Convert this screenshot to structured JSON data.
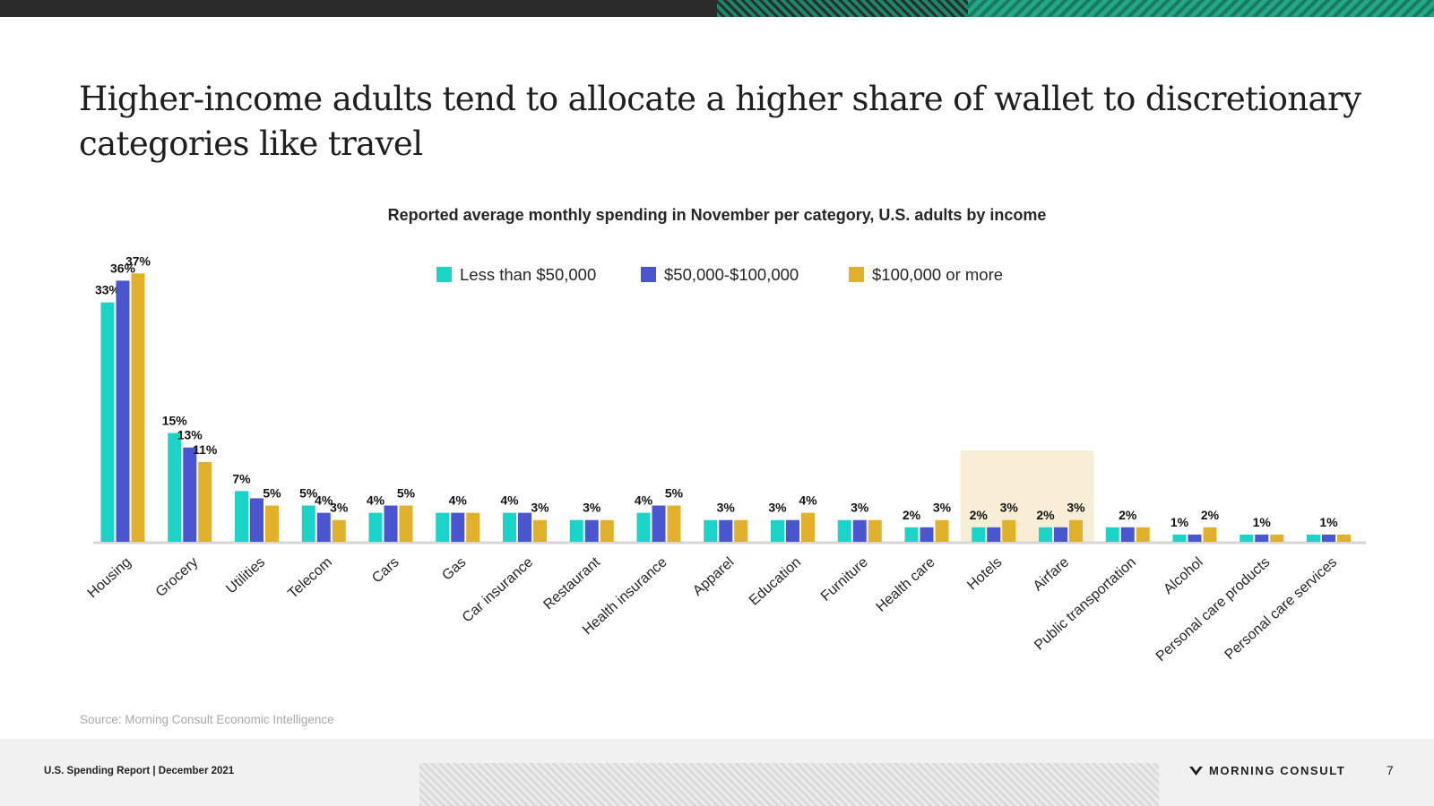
{
  "title": "Higher-income adults tend to allocate a higher share of wallet to discretionary categories like travel",
  "source": "Source: Morning Consult Economic Intelligence",
  "footer": {
    "report": "U.S. Spending Report | December 2021",
    "brand": "MORNING CONSULT",
    "page_number": "7"
  },
  "colors": {
    "low": "#1ad4c8",
    "mid": "#4a55d0",
    "high": "#e1b12c",
    "highlight": "#f7eed5",
    "axis": "#d6d6d6",
    "label": "#111111"
  },
  "chart_data": {
    "type": "bar",
    "title": "Reported average monthly spending in November per category, U.S. adults by income",
    "xlabel": "",
    "ylabel": "",
    "ylim": [
      0,
      38
    ],
    "legend_position": "top-center",
    "grid": false,
    "value_suffix": "%",
    "categories": [
      "Housing",
      "Grocery",
      "Utilities",
      "Telecom",
      "Cars",
      "Gas",
      "Car insurance",
      "Restaurant",
      "Health insurance",
      "Apparel",
      "Education",
      "Furniture",
      "Health care",
      "Hotels",
      "Airfare",
      "Public transportation",
      "Alcohol",
      "Personal care products",
      "Personal care services"
    ],
    "series": [
      {
        "name": "Less than $50,000",
        "color": "#1ad4c8",
        "values": [
          33,
          15,
          7,
          5,
          4,
          4,
          4,
          3,
          4,
          3,
          3,
          3,
          2,
          2,
          2,
          2,
          1,
          1,
          1
        ]
      },
      {
        "name": "$50,000-$100,000",
        "color": "#4a55d0",
        "values": [
          36,
          13,
          6,
          4,
          5,
          4,
          4,
          3,
          5,
          3,
          3,
          3,
          2,
          2,
          2,
          2,
          1,
          1,
          1
        ]
      },
      {
        "name": "$100,000 or more",
        "color": "#e1b12c",
        "values": [
          37,
          11,
          5,
          3,
          5,
          4,
          3,
          3,
          5,
          3,
          4,
          3,
          3,
          3,
          3,
          2,
          2,
          1,
          1
        ]
      }
    ],
    "labels": [
      [
        "33%",
        "36%",
        "37%"
      ],
      [
        "15%",
        "13%",
        "11%"
      ],
      [
        "7%",
        "",
        "5%"
      ],
      [
        "5%",
        "4%",
        "3%"
      ],
      [
        "4%",
        "",
        "5%"
      ],
      [
        "",
        "4%",
        ""
      ],
      [
        "4%",
        "",
        "3%"
      ],
      [
        "",
        "3%",
        ""
      ],
      [
        "4%",
        "",
        "5%"
      ],
      [
        "",
        "3%",
        ""
      ],
      [
        "3%",
        "",
        "4%"
      ],
      [
        "",
        "3%",
        ""
      ],
      [
        "2%",
        "",
        "3%"
      ],
      [
        "2%",
        "",
        "3%"
      ],
      [
        "2%",
        "",
        "3%"
      ],
      [
        "",
        "2%",
        ""
      ],
      [
        "1%",
        "",
        "2%"
      ],
      [
        "",
        "1%",
        ""
      ],
      [
        "",
        "1%",
        ""
      ]
    ],
    "highlighted_categories": [
      "Hotels",
      "Airfare"
    ]
  }
}
